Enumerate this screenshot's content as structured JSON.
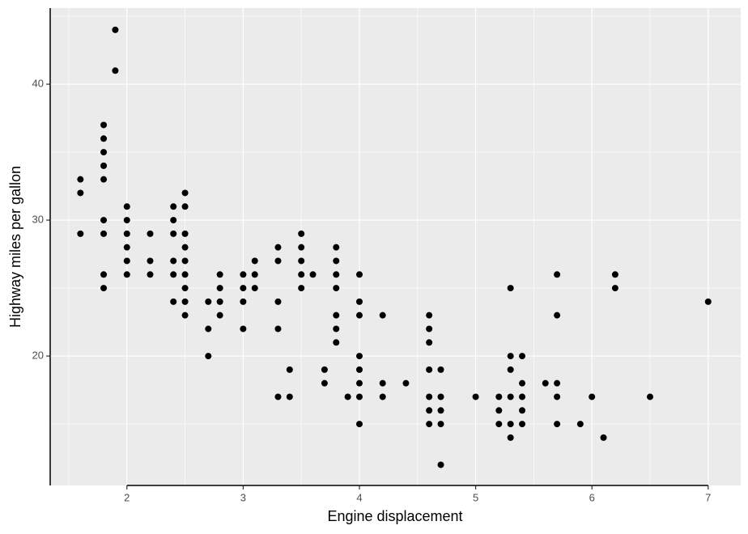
{
  "chart_data": {
    "type": "scatter",
    "x_label": "Engine displacement",
    "y_label": "Highway miles per gallon",
    "xlim": [
      1.34,
      7.28
    ],
    "ylim": [
      10.48,
      45.6
    ],
    "xticks": [
      2,
      3,
      4,
      5,
      6,
      7
    ],
    "yticks": [
      20,
      30,
      40
    ],
    "x_minor_breaks": [
      1.5,
      2.5,
      3.5,
      4.5,
      5.5,
      6.5
    ],
    "y_minor_breaks": [
      15,
      25,
      35,
      45
    ],
    "grid": true,
    "color": "#000000",
    "x": [
      1.6,
      1.6,
      1.6,
      1.8,
      1.8,
      1.8,
      1.8,
      1.8,
      1.8,
      1.8,
      1.8,
      1.8,
      1.9,
      1.9,
      2.0,
      2.0,
      2.0,
      2.0,
      2.0,
      2.0,
      2.2,
      2.2,
      2.2,
      2.4,
      2.4,
      2.4,
      2.4,
      2.4,
      2.4,
      2.5,
      2.5,
      2.5,
      2.5,
      2.5,
      2.5,
      2.5,
      2.5,
      2.5,
      2.7,
      2.7,
      2.7,
      2.8,
      2.8,
      2.8,
      2.8,
      3.0,
      3.0,
      3.0,
      3.0,
      3.1,
      3.1,
      3.1,
      3.3,
      3.3,
      3.3,
      3.3,
      3.3,
      3.4,
      3.4,
      3.5,
      3.5,
      3.5,
      3.5,
      3.5,
      3.6,
      3.7,
      3.7,
      3.8,
      3.8,
      3.8,
      3.8,
      3.8,
      3.8,
      3.8,
      3.9,
      4.0,
      4.0,
      4.0,
      4.0,
      4.0,
      4.0,
      4.0,
      4.0,
      4.2,
      4.2,
      4.2,
      4.4,
      4.6,
      4.6,
      4.6,
      4.6,
      4.6,
      4.6,
      4.6,
      4.7,
      4.7,
      4.7,
      4.7,
      4.7,
      5.0,
      5.2,
      5.2,
      5.2,
      5.3,
      5.3,
      5.3,
      5.3,
      5.3,
      5.3,
      5.4,
      5.4,
      5.4,
      5.4,
      5.4,
      5.6,
      5.7,
      5.7,
      5.7,
      5.7,
      5.7,
      5.9,
      6.0,
      6.1,
      6.2,
      6.2,
      6.5,
      7.0
    ],
    "values": [
      33,
      32,
      29,
      37,
      36,
      35,
      34,
      33,
      30,
      29,
      26,
      25,
      44,
      41,
      31,
      30,
      29,
      28,
      27,
      26,
      29,
      27,
      26,
      31,
      30,
      29,
      27,
      26,
      24,
      32,
      31,
      29,
      28,
      27,
      26,
      25,
      24,
      23,
      24,
      22,
      20,
      26,
      25,
      24,
      23,
      26,
      25,
      24,
      22,
      27,
      26,
      25,
      28,
      27,
      24,
      22,
      17,
      19,
      17,
      29,
      28,
      27,
      26,
      25,
      26,
      19,
      18,
      28,
      27,
      26,
      25,
      23,
      22,
      21,
      17,
      26,
      24,
      23,
      20,
      19,
      18,
      17,
      15,
      23,
      18,
      17,
      18,
      23,
      22,
      21,
      19,
      17,
      16,
      15,
      19,
      17,
      16,
      15,
      12,
      17,
      17,
      16,
      15,
      25,
      20,
      19,
      17,
      15,
      14,
      20,
      18,
      17,
      16,
      15,
      18,
      26,
      23,
      18,
      17,
      15,
      15,
      17,
      14,
      26,
      25,
      17,
      24
    ]
  }
}
